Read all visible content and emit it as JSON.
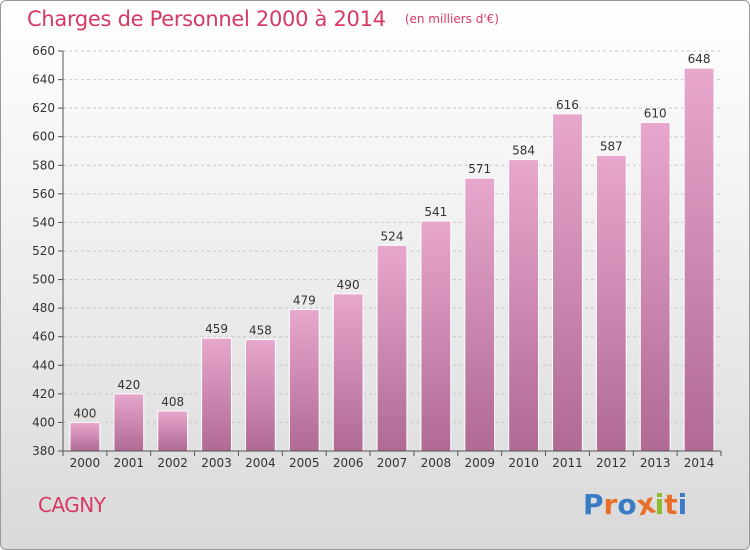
{
  "header": {
    "title": "Charges de Personnel 2000 à 2014",
    "subtitle": "(en milliers d'€)"
  },
  "footer": {
    "city": "CAGNY",
    "brand": "Proxiti"
  },
  "colors": {
    "title": "#d63a63",
    "bar_top": "#e8a7cd",
    "bar_bottom": "#b06a94",
    "brand_letters": [
      "#3a7cc4",
      "#e8702a",
      "#3a7cc4",
      "#e8702a",
      "#8dbb2b",
      "#e8702a",
      "#3a7cc4"
    ]
  },
  "chart_data": {
    "type": "bar",
    "categories": [
      "2000",
      "2001",
      "2002",
      "2003",
      "2004",
      "2005",
      "2006",
      "2007",
      "2008",
      "2009",
      "2010",
      "2011",
      "2012",
      "2013",
      "2014"
    ],
    "values": [
      400,
      420,
      408,
      459,
      458,
      479,
      490,
      524,
      541,
      571,
      584,
      616,
      587,
      610,
      648
    ],
    "title": "Charges de Personnel 2000 à 2014",
    "subtitle": "(en milliers d'€)",
    "xlabel": "",
    "ylabel": "",
    "ylim": [
      380,
      660
    ],
    "yticks": [
      380,
      400,
      420,
      440,
      460,
      480,
      500,
      520,
      540,
      560,
      580,
      600,
      620,
      640,
      660
    ],
    "grid": true,
    "data_labels": true
  }
}
